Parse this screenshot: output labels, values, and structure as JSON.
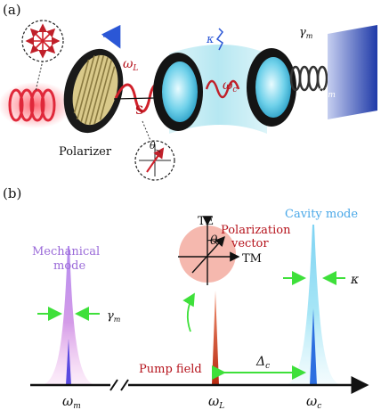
{
  "panel_a": {
    "label": "(a)",
    "polarizer": "Polarizer",
    "omega_L": "ω",
    "omega_L_sub": "L",
    "S": "S",
    "theta": "θ",
    "kappa": "κ",
    "omega_c": "ω",
    "omega_c_sub": "c",
    "gamma_m": "γ",
    "gamma_m_sub": "m",
    "omega_m": "ω",
    "omega_m_sub": "m"
  },
  "panel_b": {
    "label": "(b)",
    "mechanical_mode_line1": "Mechanical",
    "mechanical_mode_line2": "mode",
    "gamma_m": "γ",
    "gamma_m_sub": "m",
    "TE": "TE",
    "TM": "TM",
    "theta": "θ",
    "polarization_line1": "Polarization",
    "polarization_line2": "vector",
    "cavity_mode": "Cavity mode",
    "kappa": "κ",
    "pump_field": "Pump field",
    "delta": "Δ",
    "delta_sub": "c",
    "axis_omega_m": "ω",
    "axis_omega_m_sub": "m",
    "axis_omega_L": "ω",
    "axis_omega_L_sub": "L",
    "axis_omega_c": "ω",
    "axis_omega_c_sub": "c"
  },
  "colors": {
    "laser_red": "#e0283a",
    "pump_red": "#d8341a",
    "cavity_blue": "#4aa8e8",
    "mechanical_purple": "#9a6ad8",
    "label_red": "#b5121b",
    "arrow_green": "#3ee03a",
    "mirror_dark": "#1a1a1a",
    "cavity_glass": "#bfe9f2",
    "plate_blue": "#2c4cb0"
  }
}
